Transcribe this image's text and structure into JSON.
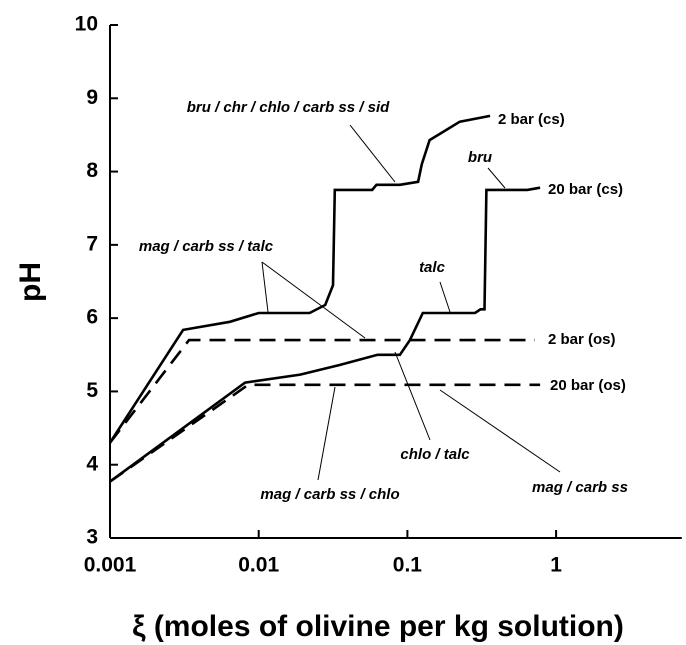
{
  "chart_data": {
    "type": "line",
    "x_label": "ξ (moles of olivine per kg solution)",
    "y_label": "pH",
    "x_log": true,
    "xlim": [
      0.001,
      7
    ],
    "ylim": [
      3,
      10
    ],
    "xticks": [
      0.001,
      0.01,
      0.1,
      1
    ],
    "yticks": [
      3,
      4,
      5,
      6,
      7,
      8,
      9,
      10
    ],
    "series": [
      {
        "name": "2 bar (cs)",
        "color": "#000000",
        "style": "solid",
        "x": [
          0.001,
          0.0031,
          0.0064,
          0.01,
          0.022,
          0.028,
          0.0316,
          0.0325,
          0.058,
          0.062,
          0.089,
          0.118,
          0.125,
          0.141,
          0.225,
          0.36
        ],
        "values": [
          4.3,
          5.84,
          5.95,
          6.07,
          6.07,
          6.18,
          6.45,
          7.75,
          7.75,
          7.82,
          7.82,
          7.86,
          8.1,
          8.43,
          8.68,
          8.76
        ]
      },
      {
        "name": "20 bar (cs)",
        "color": "#000000",
        "style": "solid",
        "x": [
          0.001,
          0.0081,
          0.019,
          0.035,
          0.063,
          0.089,
          0.104,
          0.127,
          0.285,
          0.31,
          0.33,
          0.34,
          0.64,
          0.78
        ],
        "values": [
          3.77,
          5.12,
          5.23,
          5.36,
          5.5,
          5.5,
          5.7,
          6.07,
          6.07,
          6.12,
          6.12,
          7.75,
          7.75,
          7.78
        ]
      },
      {
        "name": "2 bar (os)",
        "color": "#000000",
        "style": "dashed",
        "x": [
          0.001,
          0.0034,
          0.72
        ],
        "values": [
          4.3,
          5.7,
          5.7
        ]
      },
      {
        "name": "20 bar (os)",
        "color": "#000000",
        "style": "dashed",
        "x": [
          0.001,
          0.0085,
          0.78
        ],
        "values": [
          3.77,
          5.09,
          5.09
        ]
      }
    ],
    "annotations": [
      "bru / chr / chlo / carb ss / sid",
      "bru",
      "mag / carb ss  / talc",
      "talc",
      "chlo / talc",
      "mag / carb ss / chlo",
      "mag / carb ss"
    ]
  }
}
